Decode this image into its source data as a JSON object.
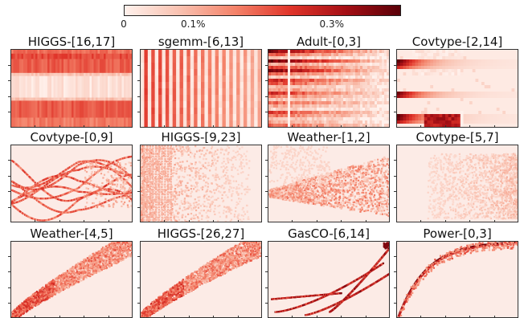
{
  "colorbar": {
    "labels": [
      "0",
      "0.1%",
      "0.3%"
    ],
    "stops": [
      0,
      0.1,
      0.3
    ],
    "max": 0.4,
    "colors": [
      "#fff1ec",
      "#f9c1b0",
      "#f4836a",
      "#e0352a",
      "#a50f15",
      "#5a0008"
    ]
  },
  "chart_data": [
    {
      "type": "heatmap",
      "title": "HIGGS-[16,17]",
      "pattern": "horizontal-bands"
    },
    {
      "type": "heatmap",
      "title": "sgemm-[6,13]",
      "pattern": "vertical-bands"
    },
    {
      "type": "heatmap",
      "title": "Adult-[0,3]",
      "pattern": "dark-horizontal-blocks"
    },
    {
      "type": "heatmap",
      "title": "Covtype-[2,14]",
      "pattern": "sparse-dark-rows"
    },
    {
      "type": "heatmap",
      "title": "Covtype-[0,9]",
      "pattern": "tangled-curves"
    },
    {
      "type": "heatmap",
      "title": "HIGGS-[9,23]",
      "pattern": "left-concentrated-grid"
    },
    {
      "type": "heatmap",
      "title": "Weather-[1,2]",
      "pattern": "fan-from-left"
    },
    {
      "type": "heatmap",
      "title": "Covtype-[5,7]",
      "pattern": "right-concentrated-cloud"
    },
    {
      "type": "heatmap",
      "title": "Weather-[4,5]",
      "pattern": "diagonal-band"
    },
    {
      "type": "heatmap",
      "title": "HIGGS-[26,27]",
      "pattern": "diagonal-band"
    },
    {
      "type": "heatmap",
      "title": "GasCO-[6,14]",
      "pattern": "multiple-rising-curves"
    },
    {
      "type": "heatmap",
      "title": "Power-[0,3]",
      "pattern": "sharp-rising-curve"
    }
  ]
}
